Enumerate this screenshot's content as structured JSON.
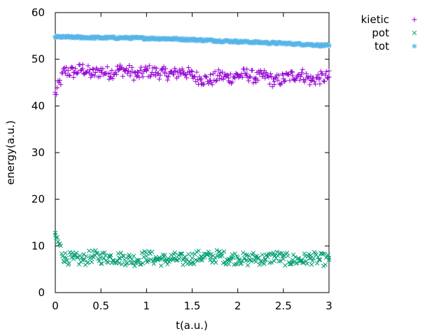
{
  "chart_data": {
    "type": "scatter",
    "xlabel": "t(a.u.)",
    "ylabel": "energy(a.u.)",
    "xlim": [
      0,
      3
    ],
    "ylim": [
      0,
      60
    ],
    "xticks": [
      0,
      0.5,
      1,
      1.5,
      2,
      2.5,
      3
    ],
    "xtick_labels": [
      "0",
      "0.5",
      "1",
      "1.5",
      "2",
      "2.5",
      "3"
    ],
    "yticks": [
      0,
      10,
      20,
      30,
      40,
      50,
      60
    ],
    "ytick_labels": [
      "0",
      "10",
      "20",
      "30",
      "40",
      "50",
      "60"
    ],
    "grid": false,
    "legend_position": "outside-top-right",
    "series": [
      {
        "name": "kietic",
        "marker": "plus",
        "color": "#9400d3",
        "x": [
          0,
          0.1,
          0.2,
          0.3,
          0.4,
          0.5,
          0.6,
          0.7,
          0.8,
          0.9,
          1.0,
          1.1,
          1.2,
          1.3,
          1.4,
          1.5,
          1.6,
          1.7,
          1.8,
          1.9,
          2.0,
          2.1,
          2.2,
          2.3,
          2.4,
          2.5,
          2.6,
          2.7,
          2.8,
          2.9,
          3.0
        ],
        "y": [
          42.5,
          47.5,
          47.2,
          48.0,
          46.8,
          47.5,
          47.0,
          47.8,
          47.5,
          46.5,
          47.5,
          47.2,
          47.0,
          46.8,
          47.5,
          46.5,
          45.8,
          45.5,
          46.5,
          46.0,
          46.5,
          46.8,
          46.0,
          46.5,
          45.2,
          45.8,
          46.5,
          46.8,
          45.5,
          46.0,
          46.2
        ],
        "noise": 1.4
      },
      {
        "name": "pot",
        "marker": "cross",
        "color": "#009e73",
        "x": [
          0,
          0.1,
          0.2,
          0.3,
          0.4,
          0.5,
          0.6,
          0.7,
          0.8,
          0.9,
          1.0,
          1.1,
          1.2,
          1.3,
          1.4,
          1.5,
          1.6,
          1.7,
          1.8,
          1.9,
          2.0,
          2.1,
          2.2,
          2.3,
          2.4,
          2.5,
          2.6,
          2.7,
          2.8,
          2.9,
          3.0
        ],
        "y": [
          12.3,
          7.5,
          7.2,
          7.0,
          7.8,
          7.5,
          7.6,
          7.4,
          7.2,
          7.0,
          7.8,
          7.2,
          7.0,
          7.3,
          7.0,
          7.4,
          7.8,
          7.5,
          7.9,
          7.2,
          7.5,
          7.0,
          7.5,
          7.0,
          7.8,
          7.2,
          7.0,
          7.0,
          7.4,
          7.1,
          7.0
        ],
        "noise": 1.4
      },
      {
        "name": "tot",
        "marker": "star",
        "color": "#56b4e9",
        "x": [
          0,
          0.25,
          0.5,
          0.75,
          1.0,
          1.25,
          1.5,
          1.75,
          2.0,
          2.25,
          2.5,
          2.75,
          3.0
        ],
        "y": [
          54.8,
          54.7,
          54.6,
          54.6,
          54.5,
          54.4,
          54.2,
          54.0,
          53.8,
          53.6,
          53.4,
          53.2,
          52.9
        ],
        "noise": 0.25
      }
    ]
  }
}
